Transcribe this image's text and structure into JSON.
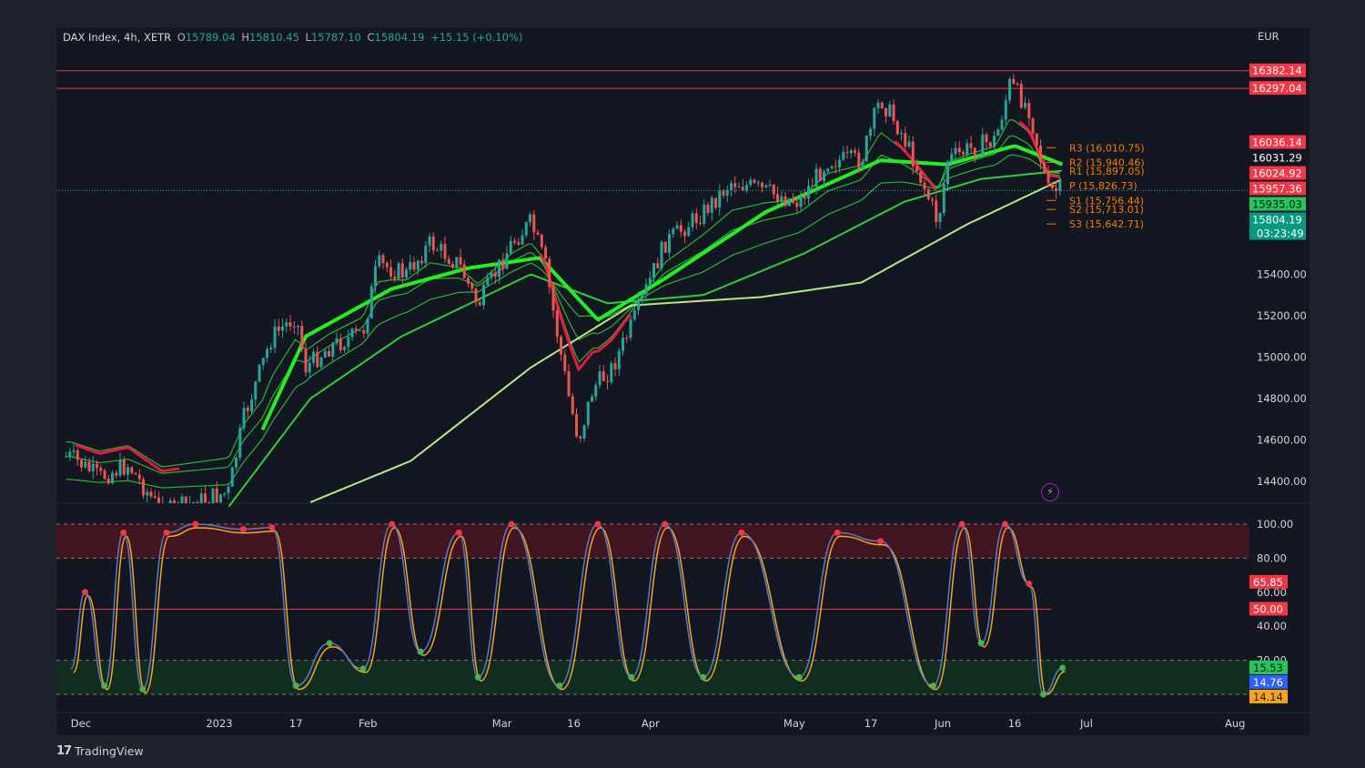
{
  "header": {
    "symbol": "DAX Index, 4h, XETR",
    "open_label": "O",
    "open": "15789.04",
    "high_label": "H",
    "high": "15810.45",
    "low_label": "L",
    "low": "15787.10",
    "close_label": "C",
    "close": "15804.19",
    "change": "+15.15 (+0.10%)",
    "currency": "EUR"
  },
  "footer": {
    "brand": "TradingView",
    "logo": "17"
  },
  "colors": {
    "background": "#1e222d",
    "pane": "#131722",
    "up": "#26a69a",
    "down": "#ef5350",
    "ema_bright": "#22ee22",
    "ema_mid": "#2fcf3a",
    "ema_long": "#b8e986",
    "pivot": "#f57c00",
    "stoch_k": "#5b7cc4",
    "stoch_d": "#f5a623"
  },
  "chart_data": [
    {
      "type": "candlestick",
      "title": "DAX Index, 4h, XETR",
      "ylabel": "EUR",
      "ylim": [
        14300,
        16460
      ],
      "y_ticks": [
        "14400.00",
        "14600.00",
        "14800.00",
        "15000.00",
        "15200.00",
        "15400.00",
        "15600.00"
      ],
      "x_ticks": [
        "Dec",
        "2023",
        "17",
        "Feb",
        "Mar",
        "16",
        "Apr",
        "May",
        "17",
        "Jun",
        "16",
        "Jul",
        "Aug"
      ],
      "price_trend": [
        {
          "date": "2022-12-01",
          "close": 14520
        },
        {
          "date": "2022-12-07",
          "close": 14420
        },
        {
          "date": "2022-12-13",
          "close": 14480
        },
        {
          "date": "2022-12-20",
          "close": 14250
        },
        {
          "date": "2023-01-03",
          "close": 14350
        },
        {
          "date": "2023-01-06",
          "close": 14700
        },
        {
          "date": "2023-01-12",
          "close": 15100
        },
        {
          "date": "2023-01-17",
          "close": 15200
        },
        {
          "date": "2023-01-19",
          "close": 14950
        },
        {
          "date": "2023-01-24",
          "close": 15050
        },
        {
          "date": "2023-01-31",
          "close": 15120
        },
        {
          "date": "2023-02-03",
          "close": 15450
        },
        {
          "date": "2023-02-09",
          "close": 15400
        },
        {
          "date": "2023-02-14",
          "close": 15550
        },
        {
          "date": "2023-02-20",
          "close": 15450
        },
        {
          "date": "2023-02-24",
          "close": 15250
        },
        {
          "date": "2023-03-03",
          "close": 15550
        },
        {
          "date": "2023-03-07",
          "close": 15650
        },
        {
          "date": "2023-03-10",
          "close": 15450
        },
        {
          "date": "2023-03-13",
          "close": 15050
        },
        {
          "date": "2023-03-15",
          "close": 14800
        },
        {
          "date": "2023-03-17",
          "close": 14600
        },
        {
          "date": "2023-03-20",
          "close": 14850
        },
        {
          "date": "2023-03-24",
          "close": 14950
        },
        {
          "date": "2023-03-28",
          "close": 15150
        },
        {
          "date": "2023-04-04",
          "close": 15550
        },
        {
          "date": "2023-04-12",
          "close": 15700
        },
        {
          "date": "2023-04-18",
          "close": 15850
        },
        {
          "date": "2023-04-25",
          "close": 15800
        },
        {
          "date": "2023-05-02",
          "close": 15750
        },
        {
          "date": "2023-05-08",
          "close": 15950
        },
        {
          "date": "2023-05-15",
          "close": 15950
        },
        {
          "date": "2023-05-19",
          "close": 16250
        },
        {
          "date": "2023-05-23",
          "close": 16100
        },
        {
          "date": "2023-05-26",
          "close": 15950
        },
        {
          "date": "2023-05-31",
          "close": 15650
        },
        {
          "date": "2023-06-02",
          "close": 15950
        },
        {
          "date": "2023-06-06",
          "close": 16000
        },
        {
          "date": "2023-06-12",
          "close": 16050
        },
        {
          "date": "2023-06-15",
          "close": 16320
        },
        {
          "date": "2023-06-19",
          "close": 16200
        },
        {
          "date": "2023-06-21",
          "close": 16000
        },
        {
          "date": "2023-06-23",
          "close": 15800
        },
        {
          "date": "2023-06-26",
          "close": 15804
        }
      ],
      "moving_averages": [
        {
          "style": "ema_fast",
          "points": [
            {
              "date": "2023-01-10",
              "value": 14650
            },
            {
              "date": "2023-01-19",
              "value": 15100
            },
            {
              "date": "2023-02-06",
              "value": 15330
            },
            {
              "date": "2023-02-22",
              "value": 15430
            },
            {
              "date": "2023-03-09",
              "value": 15480
            },
            {
              "date": "2023-03-21",
              "value": 15180
            },
            {
              "date": "2023-04-04",
              "value": 15380
            },
            {
              "date": "2023-04-25",
              "value": 15700
            },
            {
              "date": "2023-05-19",
              "value": 15950
            },
            {
              "date": "2023-06-02",
              "value": 15930
            },
            {
              "date": "2023-06-16",
              "value": 16020
            },
            {
              "date": "2023-06-26",
              "value": 15930
            }
          ]
        },
        {
          "style": "ema_mid",
          "points": [
            {
              "date": "2023-01-03",
              "value": 14280
            },
            {
              "date": "2023-01-20",
              "value": 14800
            },
            {
              "date": "2023-02-08",
              "value": 15100
            },
            {
              "date": "2023-03-07",
              "value": 15400
            },
            {
              "date": "2023-03-23",
              "value": 15260
            },
            {
              "date": "2023-04-12",
              "value": 15300
            },
            {
              "date": "2023-05-03",
              "value": 15500
            },
            {
              "date": "2023-05-24",
              "value": 15750
            },
            {
              "date": "2023-06-09",
              "value": 15860
            },
            {
              "date": "2023-06-26",
              "value": 15900
            }
          ]
        },
        {
          "style": "ema_long",
          "points": [
            {
              "date": "2023-01-20",
              "value": 14300
            },
            {
              "date": "2023-02-10",
              "value": 14500
            },
            {
              "date": "2023-03-07",
              "value": 14950
            },
            {
              "date": "2023-03-28",
              "value": 15250
            },
            {
              "date": "2023-04-24",
              "value": 15290
            },
            {
              "date": "2023-05-15",
              "value": 15360
            },
            {
              "date": "2023-06-06",
              "value": 15640
            },
            {
              "date": "2023-06-26",
              "value": 15860
            }
          ]
        }
      ],
      "horizontal_lines": [
        16382.14,
        16297.04,
        15804.19
      ],
      "pivots": [
        {
          "label": "R3 (16,010.75)",
          "value": 16010.75
        },
        {
          "label": "R2 (15,940.46)",
          "value": 15940.46
        },
        {
          "label": "R1 (15,897.05)",
          "value": 15897.05
        },
        {
          "label": "P (15,826.73)",
          "value": 15826.73
        },
        {
          "label": "S1 (15,756.44)",
          "value": 15756.44
        },
        {
          "label": "S2 (15,713.01)",
          "value": 15713.01
        },
        {
          "label": "S3 (15,642.71)",
          "value": 15642.71
        }
      ],
      "price_labels": [
        {
          "text": "16382.14",
          "value": 16382.14,
          "color": "#f23645",
          "text_color": "#ffffff"
        },
        {
          "text": "16297.04",
          "value": 16297.04,
          "color": "#f23645",
          "text_color": "#ffffff"
        },
        {
          "text": "16036.14",
          "value": 16036.14,
          "color": "#f23645",
          "text_color": "#ffffff"
        },
        {
          "text": "16031.29",
          "value": 16031.29,
          "color": "#131722",
          "text_color": "#ffffff"
        },
        {
          "text": "16024.92",
          "value": 16024.92,
          "color": "#f23645",
          "text_color": "#ffffff"
        },
        {
          "text": "15957.36",
          "value": 15957.36,
          "color": "#f23645",
          "text_color": "#ffffff"
        },
        {
          "text": "15935.03",
          "value": 15935.03,
          "color": "#22c55e",
          "text_color": "#0b1a0b"
        },
        {
          "text": "15804.19",
          "value": 15804.19,
          "color": "#089981",
          "text_color": "#ffffff",
          "countdown": "03:23:49"
        }
      ]
    },
    {
      "type": "line",
      "title": "Stochastic",
      "ylim": [
        0,
        100
      ],
      "y_ticks": [
        "100.00",
        "80.00",
        "60.00",
        "40.00",
        "20.00",
        "0.00"
      ],
      "bands": {
        "overbought": [
          80,
          100
        ],
        "oversold": [
          0,
          20
        ],
        "midline": 50
      },
      "series": [
        {
          "style": "k",
          "points": [
            {
              "date": "2022-12-01",
              "value": 15
            },
            {
              "date": "2022-12-04",
              "value": 60
            },
            {
              "date": "2022-12-08",
              "value": 5
            },
            {
              "date": "2022-12-12",
              "value": 95
            },
            {
              "date": "2022-12-16",
              "value": 3
            },
            {
              "date": "2022-12-21",
              "value": 95
            },
            {
              "date": "2022-12-27",
              "value": 100
            },
            {
              "date": "2023-01-06",
              "value": 97
            },
            {
              "date": "2023-01-12",
              "value": 98
            },
            {
              "date": "2023-01-17",
              "value": 5
            },
            {
              "date": "2023-01-24",
              "value": 30
            },
            {
              "date": "2023-01-31",
              "value": 15
            },
            {
              "date": "2023-02-06",
              "value": 100
            },
            {
              "date": "2023-02-12",
              "value": 25
            },
            {
              "date": "2023-02-20",
              "value": 95
            },
            {
              "date": "2023-02-24",
              "value": 10
            },
            {
              "date": "2023-03-03",
              "value": 100
            },
            {
              "date": "2023-03-13",
              "value": 5
            },
            {
              "date": "2023-03-21",
              "value": 100
            },
            {
              "date": "2023-03-28",
              "value": 10
            },
            {
              "date": "2023-04-04",
              "value": 100
            },
            {
              "date": "2023-04-12",
              "value": 10
            },
            {
              "date": "2023-04-20",
              "value": 95
            },
            {
              "date": "2023-05-02",
              "value": 10
            },
            {
              "date": "2023-05-10",
              "value": 95
            },
            {
              "date": "2023-05-19",
              "value": 90
            },
            {
              "date": "2023-05-30",
              "value": 5
            },
            {
              "date": "2023-06-05",
              "value": 100
            },
            {
              "date": "2023-06-09",
              "value": 30
            },
            {
              "date": "2023-06-14",
              "value": 100
            },
            {
              "date": "2023-06-19",
              "value": 65
            },
            {
              "date": "2023-06-22",
              "value": 0
            },
            {
              "date": "2023-06-26",
              "value": 15.53
            }
          ]
        }
      ],
      "value_labels": [
        {
          "text": "65.85",
          "value": 65.85,
          "color": "#f23645",
          "text_color": "#ffffff"
        },
        {
          "text": "50.00",
          "value": 50.0,
          "color": "#f23645",
          "text_color": "#ffffff"
        },
        {
          "text": "15.53",
          "value": 15.53,
          "color": "#22c55e",
          "text_color": "#0b1a0b"
        },
        {
          "text": "14.76",
          "value": 14.76,
          "color": "#2962ff",
          "text_color": "#ffffff"
        },
        {
          "text": "14.14",
          "value": 14.14,
          "color": "#f7a21b",
          "text_color": "#1e222d"
        }
      ]
    }
  ]
}
